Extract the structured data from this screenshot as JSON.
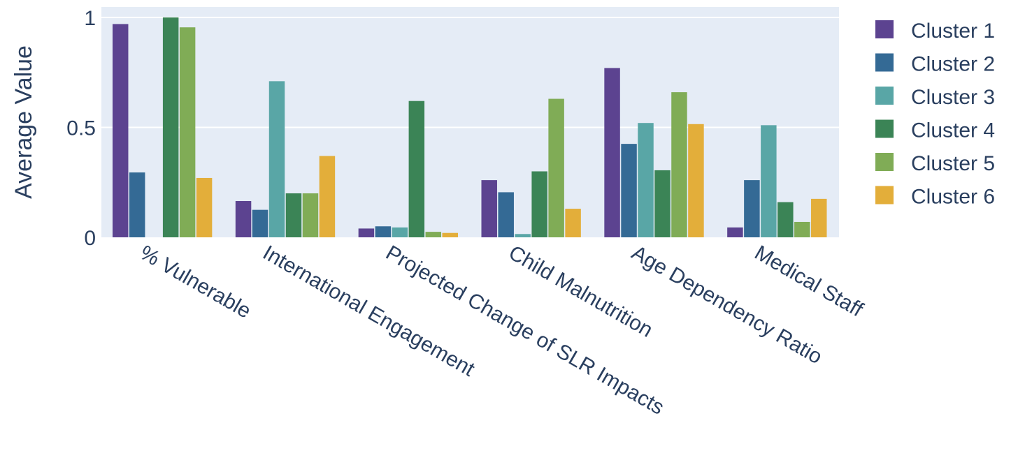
{
  "chart_data": {
    "type": "bar",
    "title": "",
    "xlabel": "",
    "ylabel": "Average Value",
    "ylim": [
      0,
      1.0
    ],
    "yticks": [
      {
        "value": 0,
        "label": "0"
      },
      {
        "value": 0.5,
        "label": "0.5"
      },
      {
        "value": 1,
        "label": "1"
      }
    ],
    "categories": [
      "% Vulnerable",
      "International Engagement",
      "Projected Change of SLR Impacts",
      "Child Malnutrition",
      "Age Dependency Ratio",
      "Medical Staff"
    ],
    "series": [
      {
        "name": "Cluster 1",
        "color": "#5c4390",
        "values": [
          0.97,
          0.165,
          0.04,
          0.26,
          0.77,
          0.045
        ]
      },
      {
        "name": "Cluster 2",
        "color": "#346a95",
        "values": [
          0.295,
          0.125,
          0.05,
          0.205,
          0.425,
          0.26
        ]
      },
      {
        "name": "Cluster 3",
        "color": "#59a6a6",
        "values": [
          0.0,
          0.71,
          0.045,
          0.015,
          0.52,
          0.51
        ]
      },
      {
        "name": "Cluster 4",
        "color": "#3b8456",
        "values": [
          1.0,
          0.2,
          0.62,
          0.3,
          0.305,
          0.16
        ]
      },
      {
        "name": "Cluster 5",
        "color": "#80ac56",
        "values": [
          0.955,
          0.2,
          0.025,
          0.63,
          0.66,
          0.07
        ]
      },
      {
        "name": "Cluster 6",
        "color": "#e3ae3a",
        "values": [
          0.27,
          0.37,
          0.02,
          0.13,
          0.515,
          0.175
        ]
      }
    ],
    "grid": true,
    "legend_position": "right",
    "plot_background": "#e5ecf6"
  }
}
